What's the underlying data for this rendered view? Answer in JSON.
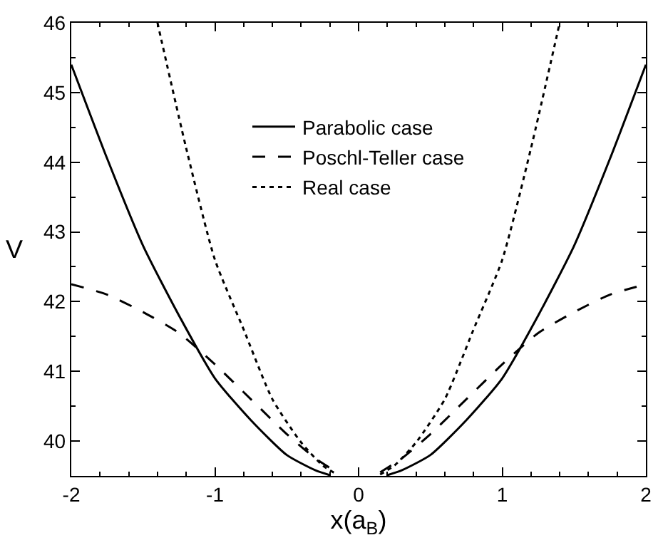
{
  "chart_data": {
    "type": "line",
    "xlabel": "x(a$_{B}$)",
    "ylabel": "V",
    "xlim": [
      -2,
      2
    ],
    "ylim": [
      39.5,
      46
    ],
    "xticks": [
      -2,
      -1,
      0,
      1,
      2
    ],
    "yticks": [
      40,
      41,
      42,
      43,
      44,
      45,
      46
    ],
    "legend": "top",
    "marker": "none",
    "series": [
      {
        "name": "Parabolic case",
        "color": "#000000",
        "line_style": "solid",
        "x": [
          -2,
          -1.75,
          -1.5,
          -1.25,
          -1,
          -0.75,
          -0.5,
          -0.3,
          -0.2,
          0,
          0.2,
          0.3,
          0.5,
          0.75,
          1,
          1.25,
          1.5,
          1.75,
          2
        ],
        "values": [
          45.4,
          44.05,
          42.8,
          41.8,
          40.9,
          40.3,
          39.8,
          39.58,
          39.51,
          null,
          39.51,
          39.58,
          39.8,
          40.3,
          40.9,
          41.8,
          42.8,
          44.05,
          45.4
        ]
      },
      {
        "name": "Poschl-Teller case",
        "color": "#000000",
        "line_style": "dashed",
        "x": [
          -2,
          -1.75,
          -1.5,
          -1.25,
          -1,
          -0.75,
          -0.5,
          -0.3,
          -0.15,
          0,
          0.15,
          0.3,
          0.5,
          0.75,
          1,
          1.25,
          1.5,
          1.75,
          2
        ],
        "values": [
          42.25,
          42.1,
          41.85,
          41.55,
          41.1,
          40.6,
          40.1,
          39.75,
          39.55,
          null,
          39.55,
          39.75,
          40.1,
          40.6,
          41.1,
          41.55,
          41.85,
          42.1,
          42.25
        ]
      },
      {
        "name": "Real case",
        "color": "#000000",
        "line_style": "dotted",
        "x": [
          -1.4,
          -1.2,
          -1,
          -0.8,
          -0.6,
          -0.4,
          -0.25,
          -0.15,
          0,
          0.15,
          0.25,
          0.4,
          0.6,
          0.8,
          1,
          1.2,
          1.4
        ],
        "values": [
          46,
          44.2,
          42.6,
          41.6,
          40.6,
          39.98,
          39.65,
          39.52,
          null,
          39.52,
          39.65,
          39.98,
          40.6,
          41.6,
          42.6,
          44.2,
          46
        ]
      }
    ]
  }
}
